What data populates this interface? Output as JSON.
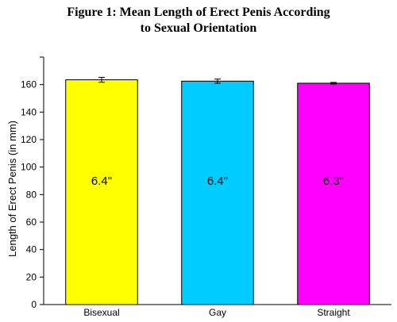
{
  "chart_data": {
    "type": "bar",
    "title_lines": [
      "Figure 1: Mean Length of Erect Penis According",
      "to Sexual Orientation"
    ],
    "xlabel": "",
    "ylabel": "Length of Erect Penis (in mm)",
    "ylim": [
      0,
      180
    ],
    "yticks": [
      0,
      20,
      40,
      60,
      80,
      100,
      120,
      140,
      160
    ],
    "categories": [
      "Bisexual",
      "Gay",
      "Straight"
    ],
    "values": [
      163.5,
      162.5,
      161
    ],
    "errors": [
      1.8,
      1.5,
      0.6
    ],
    "bar_labels": [
      "6.4\"",
      "6.4\"",
      "6.3\""
    ],
    "bar_colors": [
      "#ffff00",
      "#00ccff",
      "#ff00ff"
    ],
    "grid": false,
    "legend": "none"
  }
}
